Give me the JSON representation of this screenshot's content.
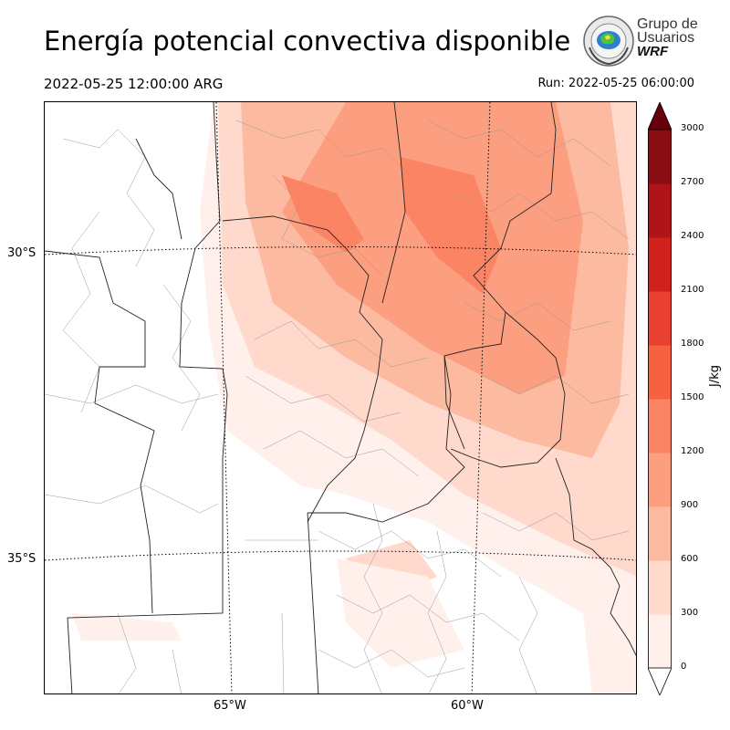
{
  "header": {
    "title": "Energía potencial convectiva disponible",
    "valid_time": "2022-05-25 12:00:00 ARG",
    "run_time": "Run: 2022-05-25 06:00:00"
  },
  "logo": {
    "line1": "Grupo de",
    "line2": "Usuarios",
    "line3": "WRF"
  },
  "map": {
    "lat_labels": [
      "30°S",
      "35°S"
    ],
    "lon_labels": [
      "65°W",
      "60°W"
    ]
  },
  "colorbar": {
    "unit": "J/kg",
    "ticks": [
      "0",
      "300",
      "600",
      "900",
      "1200",
      "1500",
      "1800",
      "2100",
      "2400",
      "2700",
      "3000"
    ],
    "colors": [
      "#fff0eb",
      "#fed9cc",
      "#fcbba1",
      "#fc9f81",
      "#fb8464",
      "#f6613f",
      "#e84031",
      "#d0211d",
      "#b01318",
      "#8b0d14",
      "#67000d"
    ]
  }
}
